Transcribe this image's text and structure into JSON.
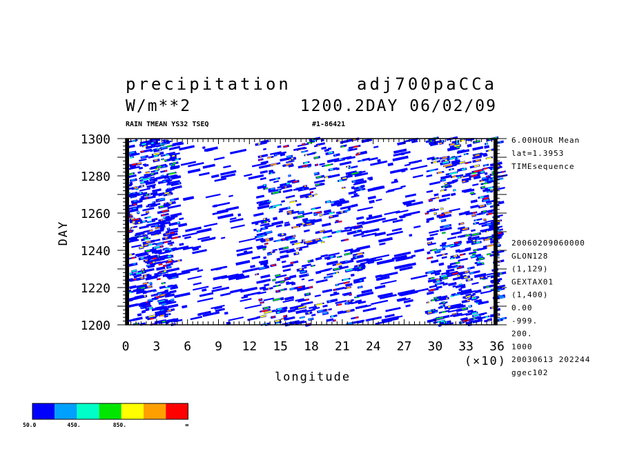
{
  "header": {
    "title_left": "precipitation",
    "title_right": "adj700paCCa",
    "unit": "W/m**2",
    "time_label": "1200.2DAY 06/02/09",
    "var_label": "RAIN TMEAN YS32 TSEQ",
    "run_label": "#1-86421"
  },
  "side_info": {
    "top": [
      "6.00HOUR Mean",
      "lat=1.3953",
      "TIMEsequence"
    ],
    "bottom": [
      "20060209060000",
      "GLON128",
      "(1,129)",
      "GEXTAX01",
      "(1,400)",
      "0.00",
      "-999.",
      "200.",
      "1000",
      "20030613 202244",
      "ggec102"
    ]
  },
  "colorbar": {
    "colors": [
      "#0000ff",
      "#00a0ff",
      "#00ffc8",
      "#00e600",
      "#ffff00",
      "#ffa000",
      "#ff0000"
    ],
    "labels": [
      "50.0",
      "450.",
      "850.",
      "∞"
    ]
  },
  "chart_data": {
    "type": "heatmap",
    "title": "precipitation",
    "xlabel": "longitude",
    "ylabel": "DAY",
    "x_multiplier": "(×10)",
    "xlim": [
      0,
      36
    ],
    "ylim": [
      1200,
      1300
    ],
    "x_ticks": [
      "0",
      "3",
      "6",
      "9",
      "12",
      "15",
      "18",
      "21",
      "24",
      "27",
      "30",
      "33",
      "36"
    ],
    "y_ticks": [
      "1200",
      "1220",
      "1240",
      "1260",
      "1280",
      "1300"
    ],
    "active_bands": [
      {
        "x_range": [
          0,
          4.5
        ],
        "y_range": [
          1200,
          1300
        ],
        "intensity": "high"
      },
      {
        "x_range": [
          4,
          13
        ],
        "y_range": [
          1200,
          1300
        ],
        "intensity": "low"
      },
      {
        "x_range": [
          12.5,
          22.5
        ],
        "y_range": [
          1200,
          1300
        ],
        "intensity": "high"
      },
      {
        "x_range": [
          22,
          28
        ],
        "y_range": [
          1200,
          1300
        ],
        "intensity": "low"
      },
      {
        "x_range": [
          29,
          36
        ],
        "y_range": [
          1200,
          1300
        ],
        "intensity": "high"
      }
    ],
    "colorbar_levels": [
      50,
      450,
      850
    ]
  }
}
